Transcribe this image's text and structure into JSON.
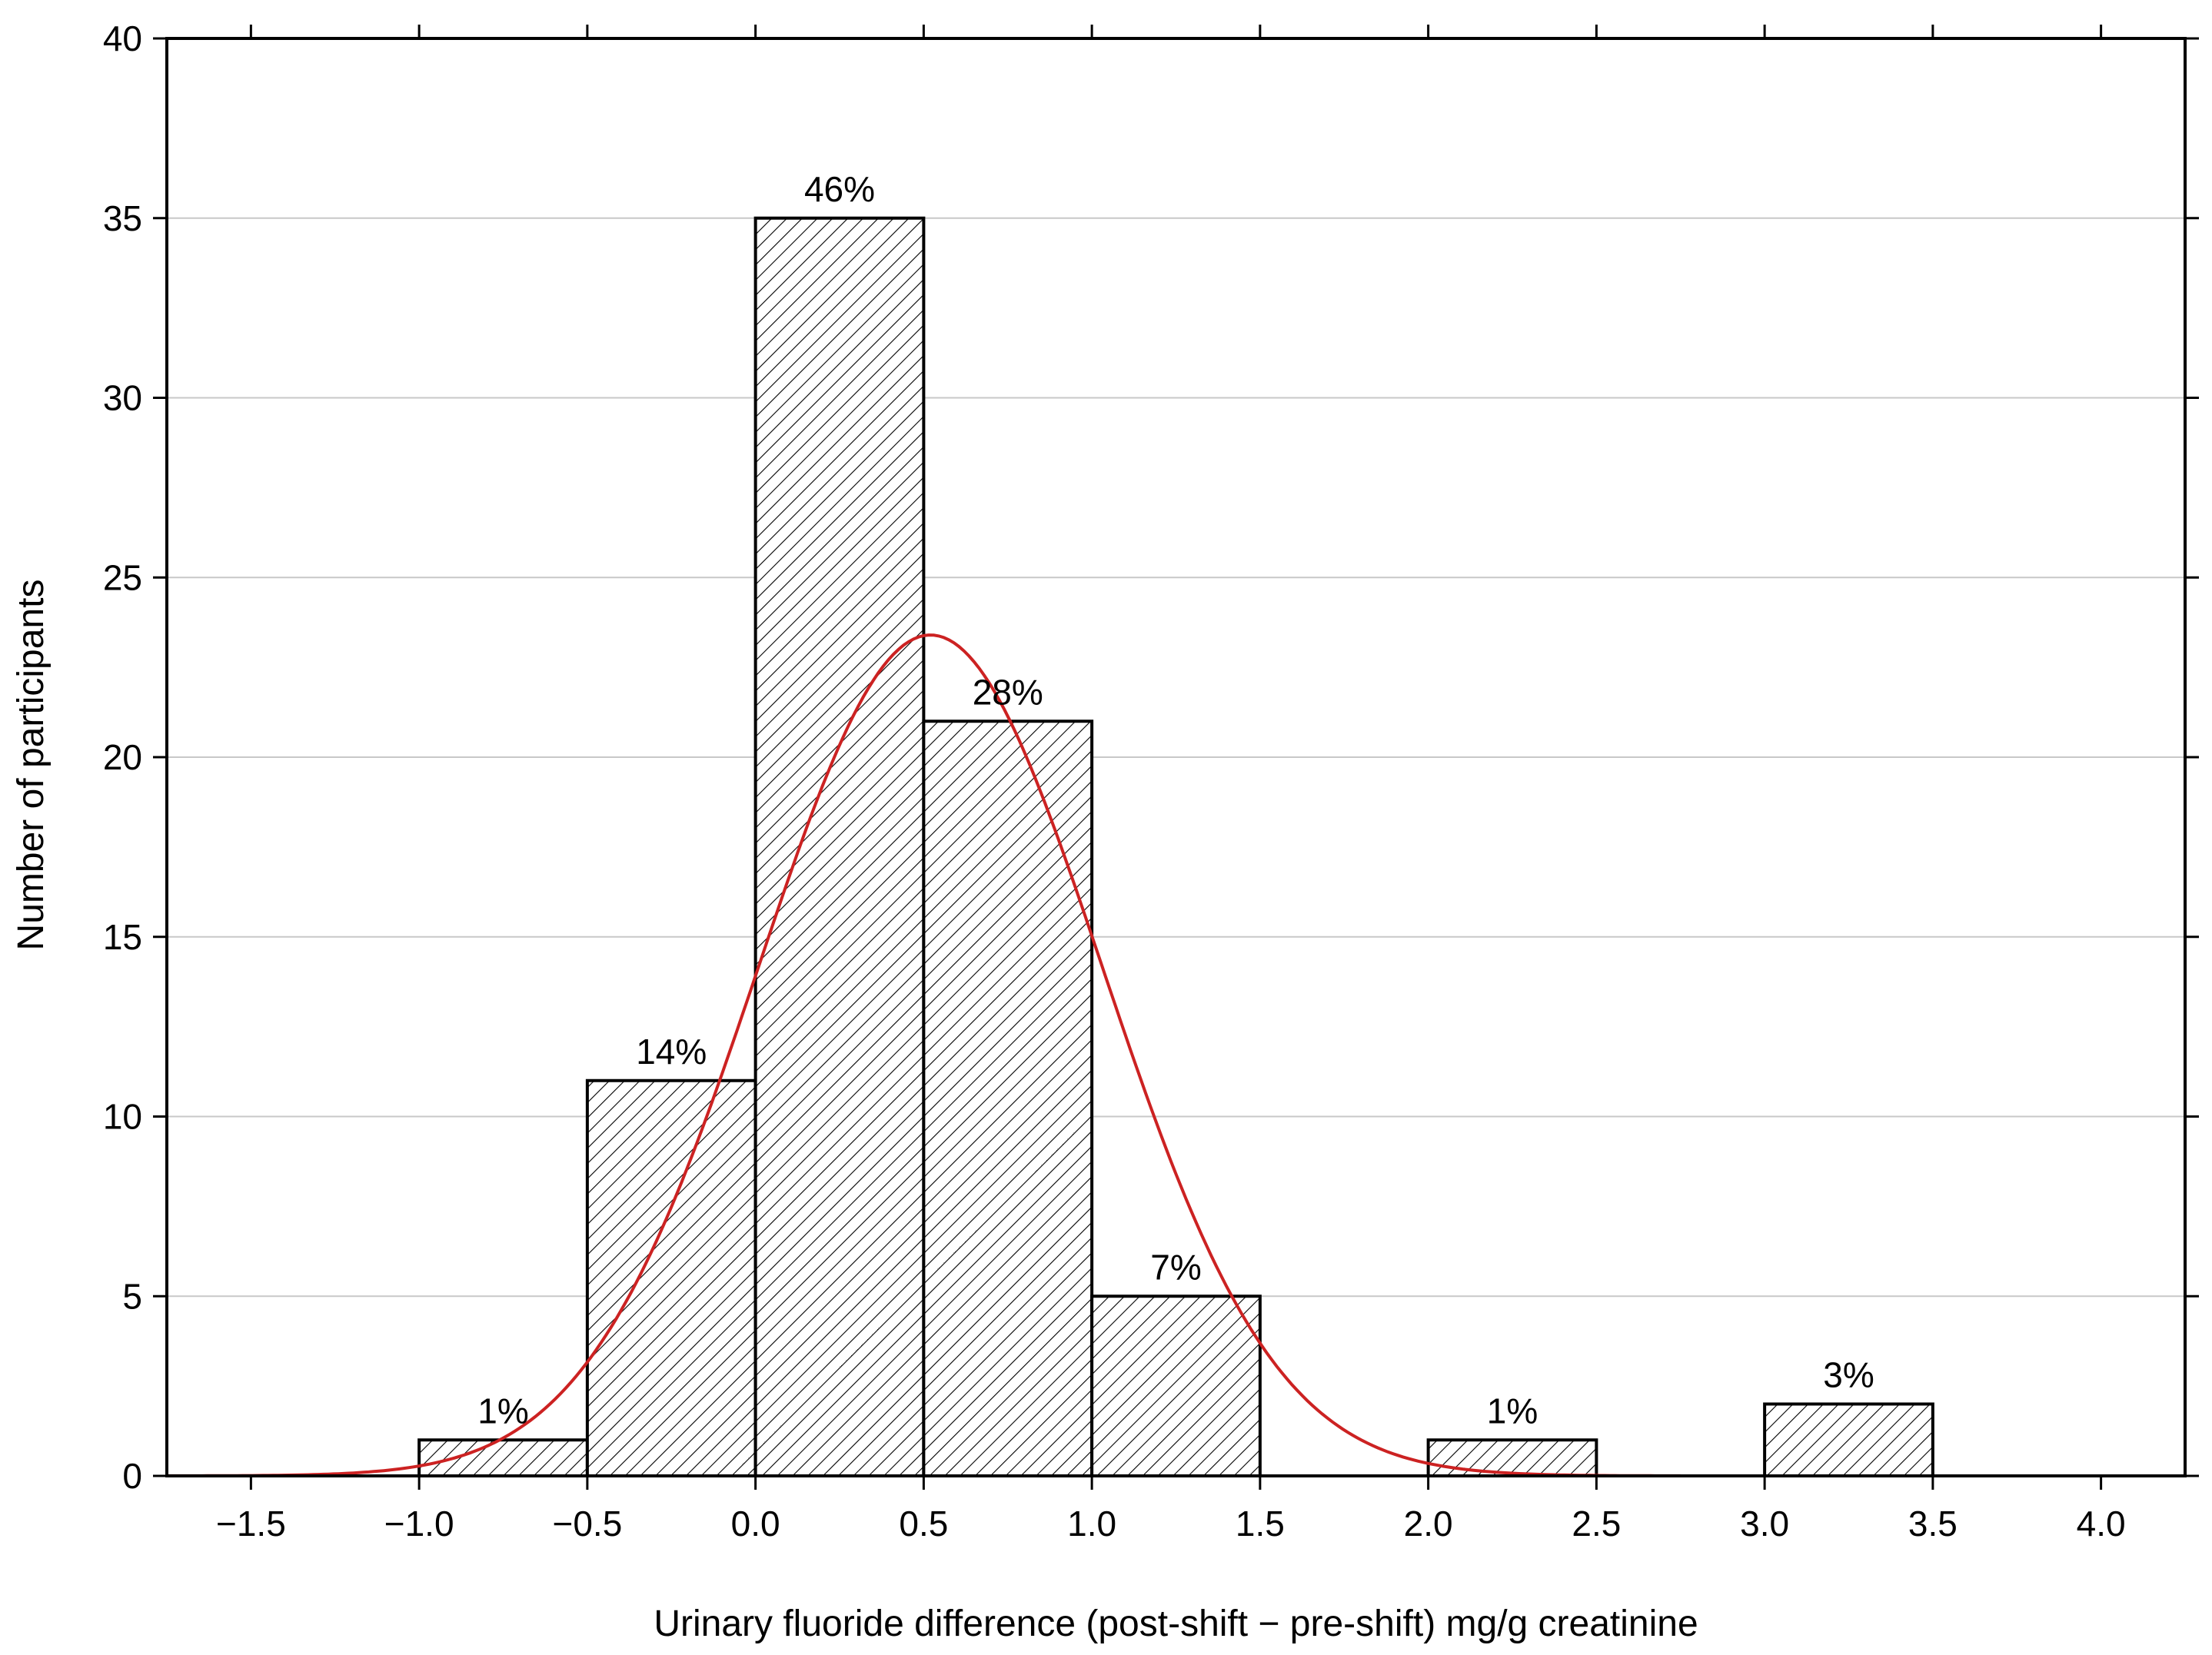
{
  "chart_data": {
    "type": "bar",
    "subtype": "histogram",
    "xlabel": "Urinary fluoride difference (post-shift − pre-shift) mg/g creatinine",
    "ylabel": "Number of participants",
    "xlim": [
      -1.75,
      4.25
    ],
    "ylim": [
      0,
      40
    ],
    "x_ticks": [
      "−1.5",
      "−1.0",
      "−0.5",
      "0.0",
      "0.5",
      "1.0",
      "1.5",
      "2.0",
      "2.5",
      "3.0",
      "3.5",
      "4.0"
    ],
    "y_ticks": [
      "0",
      "5",
      "10",
      "15",
      "20",
      "25",
      "30",
      "35",
      "40"
    ],
    "grid": "horizontal",
    "bins": [
      {
        "start": -1.0,
        "end": -0.5,
        "count": 1,
        "label": "1%"
      },
      {
        "start": -0.5,
        "end": 0.0,
        "count": 11,
        "label": "14%"
      },
      {
        "start": 0.0,
        "end": 0.5,
        "count": 35,
        "label": "46%"
      },
      {
        "start": 0.5,
        "end": 1.0,
        "count": 21,
        "label": "28%"
      },
      {
        "start": 1.0,
        "end": 1.5,
        "count": 5,
        "label": "7%"
      },
      {
        "start": 2.0,
        "end": 2.5,
        "count": 1,
        "label": "1%"
      },
      {
        "start": 3.0,
        "end": 3.5,
        "count": 2,
        "label": "3%"
      }
    ],
    "fit_curve": {
      "type": "normal",
      "mean": 0.52,
      "sd": 0.51,
      "peak": 23.4,
      "x_range": [
        -1.75,
        2.75
      ],
      "color": "#cc2222"
    },
    "bar_fill": "hatched",
    "bar_edge_color": "#000000",
    "grid_color": "#c8c8c8"
  }
}
